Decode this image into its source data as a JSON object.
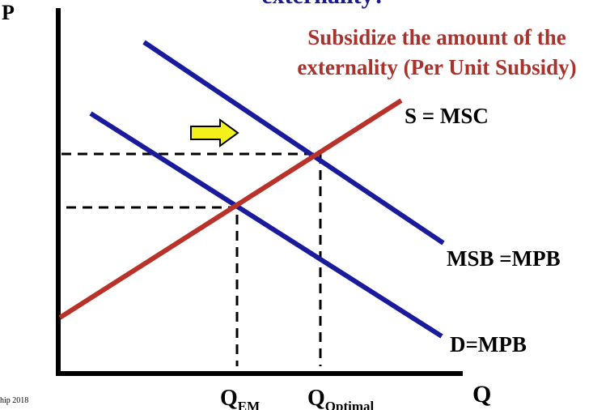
{
  "title_fragment": "externality?",
  "annotation": {
    "lines": [
      "Subsidize the amount of the",
      "externality (Per Unit Subsidy)"
    ]
  },
  "axes": {
    "y_label": "P",
    "x_label": "Q"
  },
  "curves": {
    "supply": "S = MSC",
    "msb": "MSB =MPB",
    "demand": "D=MPB"
  },
  "x_marks": [
    {
      "label": "Q",
      "subscript": "EM"
    },
    {
      "label": "Q",
      "subscript": "Optimal"
    }
  ],
  "footer": "hip 2018"
}
